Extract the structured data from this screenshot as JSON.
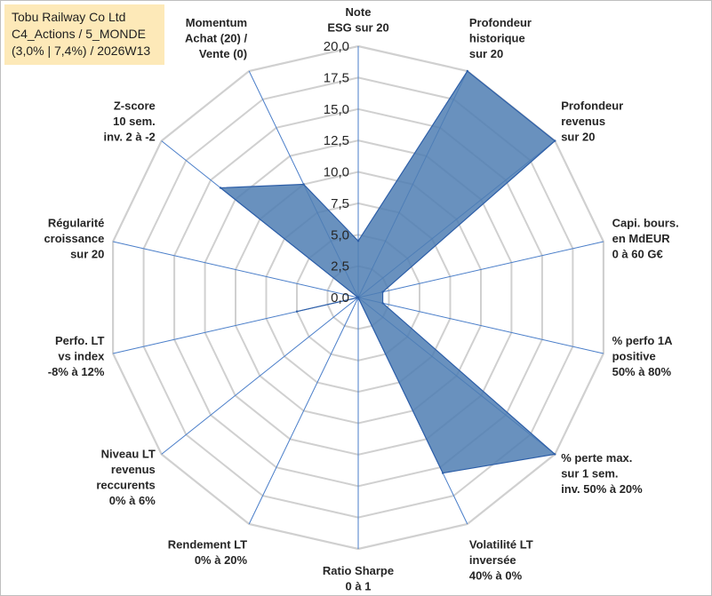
{
  "title_box": {
    "line1": "Tobu Railway Co Ltd",
    "line2": "C4_Actions / 5_MONDE",
    "line3": "(3,0% | 7,4%) / 2026W13"
  },
  "colors": {
    "fill": "#4f7eb3",
    "stroke": "#2e5fa8",
    "grid": "#d0d0d0",
    "spoke": "#4a7ec9",
    "title_bg": "#fde9b8"
  },
  "chart_data": {
    "type": "radar",
    "title": "Tobu Railway Co Ltd",
    "ylim": [
      0,
      20
    ],
    "tick_labels": [
      "0,0",
      "2,5",
      "5,0",
      "7,5",
      "10,0",
      "12,5",
      "15,0",
      "17,5",
      "20,0"
    ],
    "categories": [
      [
        "Note",
        "ESG sur 20"
      ],
      [
        "Profondeur",
        "historique",
        "sur 20"
      ],
      [
        "Profondeur",
        "revenus",
        "sur 20"
      ],
      [
        "Capi. bours.",
        "en MdEUR",
        "0 à 60 G€"
      ],
      [
        "% perfo 1A",
        "positive",
        "50% à 80%"
      ],
      [
        "% perte max.",
        "sur 1 sem.",
        "inv. 50% à 20%"
      ],
      [
        "Volatilité LT",
        "inversée",
        "40% à 0%"
      ],
      [
        "Ratio Sharpe",
        "0 à 1"
      ],
      [
        "Rendement LT",
        "0% à 20%"
      ],
      [
        "Niveau LT",
        "revenus",
        "reccurents",
        "0% à 6%"
      ],
      [
        "Perfo. LT",
        "vs index",
        "-8% à 12%"
      ],
      [
        "Régularité",
        "croissance",
        "sur 20"
      ],
      [
        "Z-score",
        "10 sem.",
        "inv. 2 à -2"
      ],
      [
        "Momentum",
        "Achat (20) /",
        "Vente (0)"
      ]
    ],
    "series": [
      {
        "name": "Tobu Railway Co Ltd",
        "values": [
          4.5,
          20.0,
          20.0,
          2.0,
          2.0,
          20.0,
          15.5,
          0.0,
          0.0,
          0.0,
          5.0,
          0.0,
          14.0,
          10.0
        ]
      }
    ],
    "grid": true,
    "legend": "none"
  }
}
